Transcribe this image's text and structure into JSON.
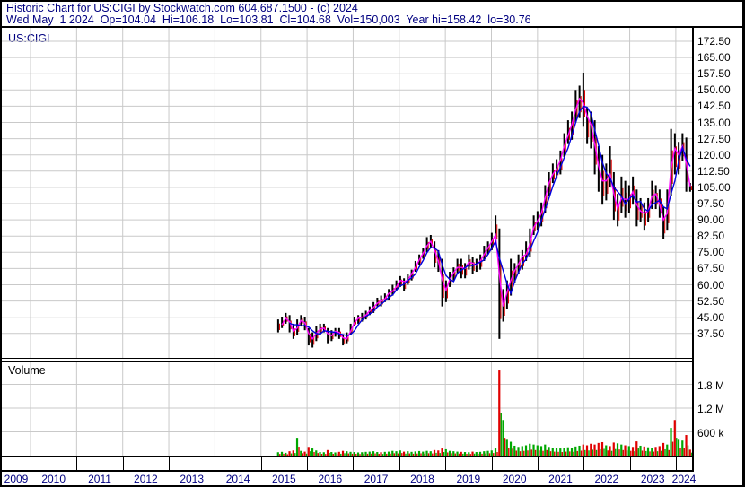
{
  "header": {
    "line1": "Historic Chart for US:CIGI by Stockwatch.com 604.687.1500 - (c) 2024",
    "line2": "Wed May  1 2024  Op=104.04  Hi=106.18  Lo=103.81  Cl=104.68  Vol=150,003  Year hi=158.42  lo=30.76"
  },
  "price_panel": {
    "symbol_label": "US:CIGI"
  },
  "volume_panel": {
    "label": "Volume"
  },
  "colors": {
    "header_text": "#000080",
    "year_text": "#000080",
    "axis_text": "#000000",
    "grid": "#c9c9c9",
    "border": "#000000",
    "price_bar": "#000000",
    "price_bar_fleck": "#e10000",
    "ma_fast": "#ff00ff",
    "ma_slow": "#0000e0",
    "volume_up": "#00a800",
    "volume_down": "#e00000"
  },
  "chart_data": {
    "type": "ohlc-bar+volume",
    "title": "US:CIGI daily price with fast/slow moving averages and volume",
    "x_axis_years": [
      "2009",
      "2010",
      "2011",
      "2012",
      "2013",
      "2014",
      "2015",
      "2016",
      "2017",
      "2018",
      "2019",
      "2020",
      "2021",
      "2022",
      "2023",
      "2024"
    ],
    "price_axis_ticks_top_to_bottom": [
      "172.50",
      "165.00",
      "157.50",
      "150.00",
      "142.50",
      "135.00",
      "127.50",
      "120.00",
      "112.50",
      "105.00",
      "97.50",
      "90.00",
      "82.50",
      "75.00",
      "67.50",
      "60.00",
      "52.50",
      "45.00",
      "37.50"
    ],
    "price_top_value": 172.5,
    "price_tick_step": 7.5,
    "volume_axis_ticks": [
      {
        "label": "1.8 M",
        "value_k": 1800
      },
      {
        "label": "1.2 M",
        "value_k": 1200
      },
      {
        "label": "600 k",
        "value_k": 600
      }
    ],
    "series_start_month": "2015-05",
    "series_end_month": "2024-05",
    "note": "monthly approximation of daily bars: [high, low, close, volume_k]",
    "monthly_hi_lo_close_volK": [
      [
        44,
        38,
        40,
        85
      ],
      [
        45,
        40,
        43,
        95
      ],
      [
        47,
        42,
        46,
        70
      ],
      [
        46,
        38,
        40,
        110
      ],
      [
        42,
        35,
        37,
        130
      ],
      [
        44,
        37,
        43,
        450
      ],
      [
        46,
        41,
        44,
        120
      ],
      [
        45,
        39,
        41,
        100
      ],
      [
        40,
        32,
        34,
        220
      ],
      [
        38,
        31,
        36,
        180
      ],
      [
        41,
        34,
        39,
        130
      ],
      [
        42,
        37,
        40,
        90
      ],
      [
        42,
        38,
        40,
        85
      ],
      [
        40,
        33,
        35,
        140
      ],
      [
        39,
        34,
        38,
        90
      ],
      [
        40,
        36,
        39,
        80
      ],
      [
        40,
        35,
        37,
        95
      ],
      [
        37,
        32,
        34,
        120
      ],
      [
        38,
        33,
        36,
        110
      ],
      [
        42,
        37,
        41,
        95
      ],
      [
        45,
        41,
        44,
        90
      ],
      [
        46,
        42,
        45,
        80
      ],
      [
        47,
        43,
        45,
        85
      ],
      [
        48,
        44,
        47,
        95
      ],
      [
        50,
        46,
        49,
        100
      ],
      [
        52,
        47,
        50,
        110
      ],
      [
        54,
        50,
        53,
        90
      ],
      [
        55,
        50,
        52,
        85
      ],
      [
        56,
        52,
        55,
        95
      ],
      [
        58,
        53,
        57,
        100
      ],
      [
        60,
        55,
        57,
        120
      ],
      [
        62,
        57,
        61,
        110
      ],
      [
        64,
        59,
        63,
        130
      ],
      [
        63,
        57,
        60,
        100
      ],
      [
        65,
        60,
        64,
        110
      ],
      [
        67,
        62,
        66,
        95
      ],
      [
        71,
        66,
        70,
        105
      ],
      [
        74,
        69,
        73,
        115
      ],
      [
        77,
        72,
        76,
        100
      ],
      [
        82,
        75,
        80,
        120
      ],
      [
        83,
        77,
        80,
        110
      ],
      [
        80,
        68,
        72,
        140
      ],
      [
        76,
        66,
        70,
        130
      ],
      [
        72,
        50,
        55,
        180
      ],
      [
        62,
        52,
        60,
        160
      ],
      [
        66,
        59,
        65,
        120
      ],
      [
        68,
        62,
        66,
        110
      ],
      [
        72,
        65,
        70,
        100
      ],
      [
        72,
        63,
        66,
        95
      ],
      [
        70,
        63,
        69,
        90
      ],
      [
        74,
        67,
        72,
        85
      ],
      [
        73,
        65,
        68,
        100
      ],
      [
        72,
        66,
        70,
        90
      ],
      [
        74,
        67,
        72,
        95
      ],
      [
        78,
        71,
        76,
        110
      ],
      [
        80,
        74,
        78,
        120
      ],
      [
        84,
        76,
        82,
        130
      ],
      [
        92,
        79,
        84,
        180
      ],
      [
        86,
        35,
        45,
        2150
      ],
      [
        58,
        43,
        55,
        900
      ],
      [
        62,
        49,
        58,
        400
      ],
      [
        72,
        55,
        66,
        350
      ],
      [
        70,
        61,
        67,
        250
      ],
      [
        74,
        65,
        72,
        220
      ],
      [
        76,
        67,
        74,
        240
      ],
      [
        80,
        71,
        74,
        260
      ],
      [
        86,
        73,
        84,
        300
      ],
      [
        92,
        83,
        89,
        280
      ],
      [
        94,
        85,
        90,
        260
      ],
      [
        98,
        87,
        96,
        240
      ],
      [
        106,
        93,
        104,
        280
      ],
      [
        112,
        101,
        110,
        220
      ],
      [
        116,
        107,
        112,
        200
      ],
      [
        118,
        109,
        115,
        190
      ],
      [
        122,
        111,
        120,
        180
      ],
      [
        130,
        119,
        128,
        200
      ],
      [
        136,
        125,
        130,
        210
      ],
      [
        140,
        127,
        138,
        190
      ],
      [
        150,
        135,
        144,
        230
      ],
      [
        152,
        137,
        148,
        250
      ],
      [
        158,
        133,
        140,
        280
      ],
      [
        142,
        125,
        136,
        260
      ],
      [
        140,
        123,
        132,
        300
      ],
      [
        136,
        111,
        118,
        280
      ],
      [
        124,
        103,
        112,
        320
      ],
      [
        120,
        97,
        104,
        340
      ],
      [
        116,
        99,
        112,
        260
      ],
      [
        124,
        105,
        110,
        240
      ],
      [
        112,
        90,
        94,
        330
      ],
      [
        102,
        87,
        96,
        310
      ],
      [
        110,
        93,
        104,
        280
      ],
      [
        108,
        91,
        95,
        260
      ],
      [
        106,
        93,
        104,
        240
      ],
      [
        110,
        97,
        102,
        220
      ],
      [
        104,
        87,
        92,
        360
      ],
      [
        100,
        89,
        96,
        250
      ],
      [
        98,
        85,
        90,
        230
      ],
      [
        100,
        89,
        98,
        210
      ],
      [
        108,
        95,
        104,
        200
      ],
      [
        106,
        95,
        100,
        220
      ],
      [
        104,
        91,
        94,
        240
      ],
      [
        96,
        81,
        86,
        320
      ],
      [
        104,
        85,
        100,
        280
      ],
      [
        132,
        101,
        128,
        700
      ],
      [
        130,
        111,
        118,
        900
      ],
      [
        126,
        111,
        122,
        400
      ],
      [
        130,
        117,
        126,
        380
      ],
      [
        128,
        103,
        106,
        520
      ],
      [
        107,
        103,
        105,
        150
      ]
    ],
    "ma_fast_window_months": 2,
    "ma_slow_window_months": 4,
    "grid": "on",
    "legend": "none"
  }
}
